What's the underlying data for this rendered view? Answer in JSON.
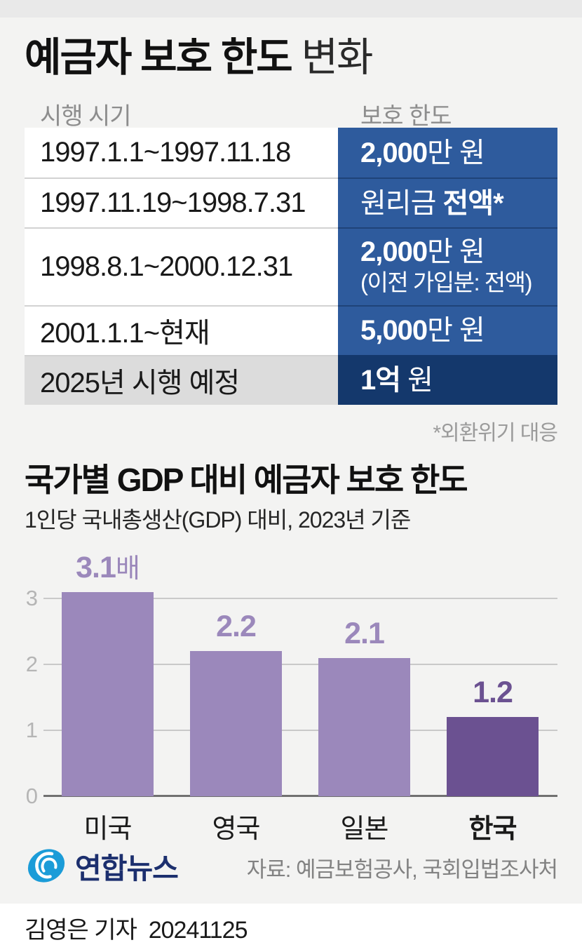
{
  "page": {
    "title_strong": "예금자 보호 한도",
    "title_light": "변화",
    "footnote": "*외환위기 대응",
    "byline": "김영은 기자  20241125"
  },
  "table": {
    "col_period": "시행 시기",
    "col_limit": "보호 한도",
    "rows": [
      {
        "period": "1997.1.1~1997.11.18",
        "limit_pre": "",
        "limit_bold": "2,000",
        "limit_post": "만 원",
        "note": "",
        "highlight": false
      },
      {
        "period": "1997.11.19~1998.7.31",
        "limit_pre": "원리금 ",
        "limit_bold": "전액*",
        "limit_post": "",
        "note": "",
        "highlight": false
      },
      {
        "period": "1998.8.1~2000.12.31",
        "limit_pre": "",
        "limit_bold": "2,000",
        "limit_post": "만 원",
        "note": "(이전 가입분: 전액)",
        "highlight": false
      },
      {
        "period": "2001.1.1~현재",
        "limit_pre": "",
        "limit_bold": "5,000",
        "limit_post": "만 원",
        "note": "",
        "highlight": false
      },
      {
        "period": "2025년 시행 예정",
        "limit_pre": "",
        "limit_bold": "1억",
        "limit_post": " 원",
        "note": "",
        "highlight": true
      }
    ]
  },
  "chart_data": {
    "type": "bar",
    "title": "국가별 GDP 대비 예금자 보호 한도",
    "subtitle": "1인당 국내총생산(GDP) 대비, 2023년 기준",
    "categories": [
      "미국",
      "영국",
      "일본",
      "한국"
    ],
    "values": [
      3.1,
      2.2,
      2.1,
      1.2
    ],
    "value_labels": [
      "3.1",
      "2.2",
      "2.1",
      "1.2"
    ],
    "value_suffixes": [
      "배",
      "",
      "",
      ""
    ],
    "yticks": [
      0,
      1,
      2,
      3
    ],
    "ylim": [
      0,
      3.55
    ],
    "grid": true,
    "legend": "none",
    "emphasis_index": 3,
    "bar_color": "#9b88bb",
    "bar_color_emphasis": "#6b5191",
    "label_color": "#9b88bb",
    "label_color_emphasis": "#6b5191"
  },
  "footer": {
    "logo_text": "연합뉴스",
    "source": "자료: 예금보험공사, 국회입법조사처"
  },
  "colors": {
    "limit_cell_blue": "#2e5b9d",
    "limit_cell_navy": "#14386c",
    "period_cell_gray": "#dcdcdc",
    "logo_blue": "#1b9cd8",
    "logo_navy": "#1c2f6e"
  }
}
